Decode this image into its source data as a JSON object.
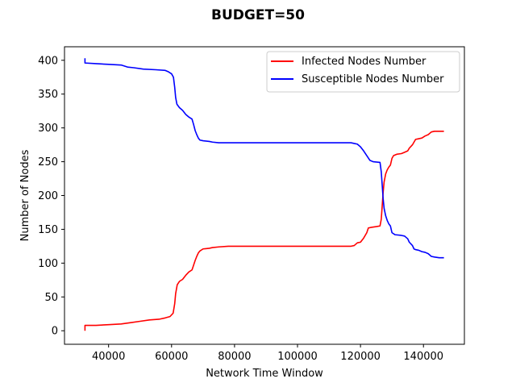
{
  "chart_data": {
    "type": "line",
    "title": "BUDGET=50",
    "xlabel": "Network Time Window",
    "ylabel": "Number of Nodes",
    "xlim": [
      26000,
      153000
    ],
    "ylim": [
      -20,
      420
    ],
    "xticks": [
      40000,
      60000,
      80000,
      100000,
      120000,
      140000
    ],
    "xtick_labels": [
      "40000",
      "60000",
      "80000",
      "100000",
      "120000",
      "140000"
    ],
    "yticks": [
      0,
      50,
      100,
      150,
      200,
      250,
      300,
      350,
      400
    ],
    "ytick_labels": [
      "0",
      "50",
      "100",
      "150",
      "200",
      "250",
      "300",
      "350",
      "400"
    ],
    "grid": false,
    "legend_position": "top-right",
    "series": [
      {
        "name": "Infected Nodes Number",
        "color": "#ff0000",
        "points": [
          [
            32500,
            0
          ],
          [
            32500,
            8
          ],
          [
            36000,
            8
          ],
          [
            40000,
            9
          ],
          [
            44000,
            10
          ],
          [
            47000,
            12
          ],
          [
            50000,
            14
          ],
          [
            53000,
            16
          ],
          [
            56000,
            17
          ],
          [
            58000,
            19
          ],
          [
            59500,
            21
          ],
          [
            60500,
            26
          ],
          [
            61000,
            40
          ],
          [
            61300,
            55
          ],
          [
            61800,
            68
          ],
          [
            62500,
            73
          ],
          [
            63500,
            76
          ],
          [
            64500,
            82
          ],
          [
            65500,
            87
          ],
          [
            66500,
            90
          ],
          [
            67000,
            97
          ],
          [
            67500,
            104
          ],
          [
            68000,
            110
          ],
          [
            68500,
            115
          ],
          [
            69000,
            118
          ],
          [
            70000,
            121
          ],
          [
            72000,
            122
          ],
          [
            73000,
            123
          ],
          [
            75000,
            124
          ],
          [
            78000,
            125
          ],
          [
            90000,
            125
          ],
          [
            100000,
            125
          ],
          [
            110000,
            125
          ],
          [
            117000,
            125
          ],
          [
            118000,
            126
          ],
          [
            119000,
            130
          ],
          [
            120000,
            131
          ],
          [
            121000,
            137
          ],
          [
            122000,
            145
          ],
          [
            122500,
            152
          ],
          [
            123500,
            153
          ],
          [
            125000,
            154
          ],
          [
            126200,
            155
          ],
          [
            126600,
            165
          ],
          [
            126900,
            185
          ],
          [
            127200,
            205
          ],
          [
            127500,
            220
          ],
          [
            128000,
            232
          ],
          [
            128500,
            238
          ],
          [
            129000,
            242
          ],
          [
            129500,
            245
          ],
          [
            130000,
            255
          ],
          [
            130500,
            259
          ],
          [
            131500,
            261
          ],
          [
            133000,
            262
          ],
          [
            134000,
            264
          ],
          [
            135000,
            266
          ],
          [
            135500,
            270
          ],
          [
            136500,
            275
          ],
          [
            137000,
            279
          ],
          [
            137500,
            283
          ],
          [
            138500,
            284
          ],
          [
            139500,
            285
          ],
          [
            140500,
            288
          ],
          [
            141500,
            290
          ],
          [
            142500,
            294
          ],
          [
            143500,
            295
          ],
          [
            145000,
            295
          ],
          [
            146500,
            295
          ]
        ]
      },
      {
        "name": "Susceptible Nodes Number",
        "color": "#0000ff",
        "points": [
          [
            32500,
            403
          ],
          [
            32500,
            396
          ],
          [
            36000,
            395
          ],
          [
            40000,
            394
          ],
          [
            44000,
            393
          ],
          [
            46000,
            390
          ],
          [
            48000,
            389
          ],
          [
            51000,
            387
          ],
          [
            55000,
            386
          ],
          [
            58000,
            385
          ],
          [
            59000,
            383
          ],
          [
            60000,
            380
          ],
          [
            60600,
            375
          ],
          [
            61000,
            360
          ],
          [
            61300,
            345
          ],
          [
            61700,
            335
          ],
          [
            62500,
            330
          ],
          [
            63500,
            326
          ],
          [
            64500,
            320
          ],
          [
            65500,
            316
          ],
          [
            66500,
            313
          ],
          [
            67000,
            305
          ],
          [
            67500,
            296
          ],
          [
            68000,
            290
          ],
          [
            68500,
            285
          ],
          [
            69000,
            282
          ],
          [
            70000,
            281
          ],
          [
            72000,
            280
          ],
          [
            73000,
            279
          ],
          [
            75000,
            278
          ],
          [
            80000,
            278
          ],
          [
            90000,
            278
          ],
          [
            100000,
            278
          ],
          [
            110000,
            278
          ],
          [
            117000,
            278
          ],
          [
            118000,
            277
          ],
          [
            119000,
            276
          ],
          [
            120000,
            272
          ],
          [
            121000,
            266
          ],
          [
            122000,
            259
          ],
          [
            123000,
            252
          ],
          [
            124000,
            250
          ],
          [
            126200,
            249
          ],
          [
            126600,
            235
          ],
          [
            126900,
            215
          ],
          [
            127200,
            195
          ],
          [
            127500,
            181
          ],
          [
            128000,
            170
          ],
          [
            128500,
            163
          ],
          [
            129000,
            158
          ],
          [
            129500,
            155
          ],
          [
            130000,
            145
          ],
          [
            131000,
            142
          ],
          [
            133000,
            141
          ],
          [
            134000,
            140
          ],
          [
            135000,
            136
          ],
          [
            135500,
            131
          ],
          [
            136500,
            126
          ],
          [
            137000,
            121
          ],
          [
            137500,
            120
          ],
          [
            138500,
            119
          ],
          [
            139500,
            117
          ],
          [
            140500,
            116
          ],
          [
            141500,
            114
          ],
          [
            142500,
            110
          ],
          [
            143500,
            109
          ],
          [
            145000,
            108
          ],
          [
            146500,
            108
          ]
        ]
      }
    ]
  }
}
